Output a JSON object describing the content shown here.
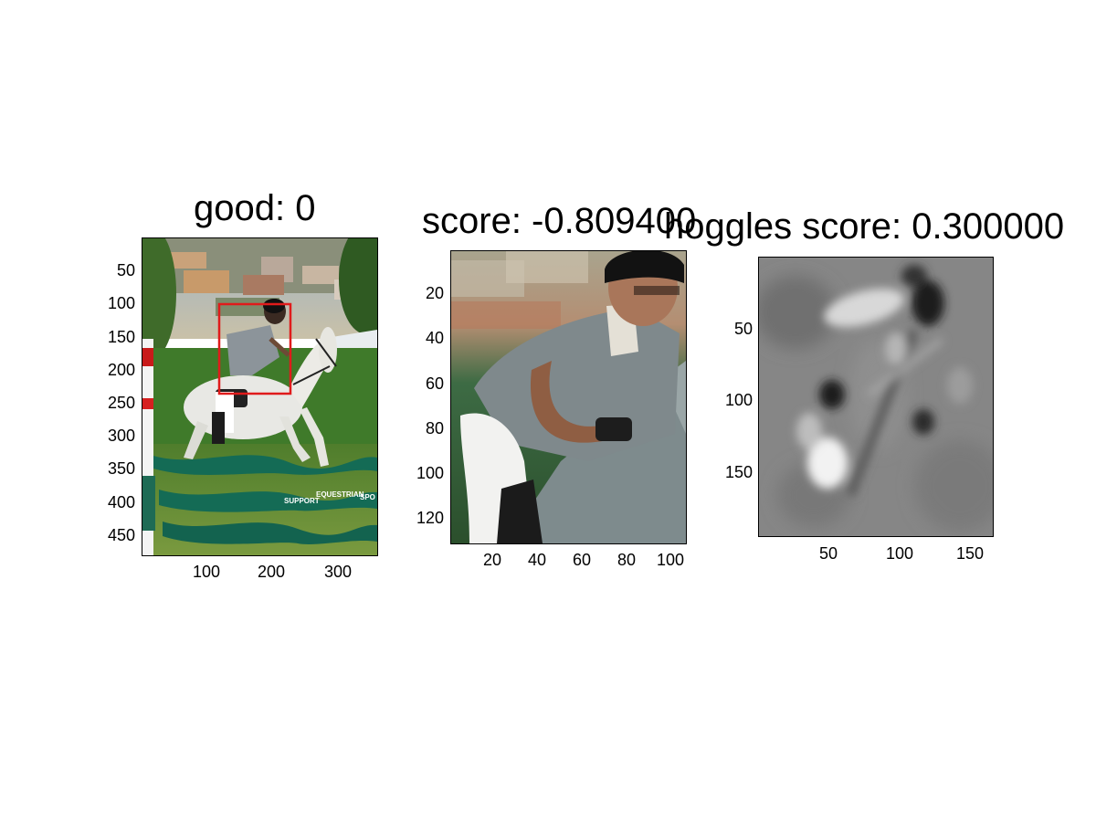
{
  "panels": [
    {
      "id": "original",
      "title": "good: 0",
      "x_ticks": [
        "100",
        "200",
        "300"
      ],
      "y_ticks": [
        "50",
        "100",
        "150",
        "200",
        "250",
        "300",
        "350",
        "400",
        "450"
      ],
      "fence_text": [
        "SUPPORT",
        "EQUESTRIAN",
        "SPO"
      ]
    },
    {
      "id": "crop",
      "title": "score: -0.809400",
      "x_ticks": [
        "20",
        "40",
        "60",
        "80",
        "100"
      ],
      "y_ticks": [
        "20",
        "40",
        "60",
        "80",
        "100",
        "120"
      ]
    },
    {
      "id": "hoggles",
      "title": "hoggles score: 0.300000",
      "x_ticks": [
        "50",
        "100",
        "150"
      ],
      "y_ticks": [
        "50",
        "100",
        "150"
      ]
    }
  ],
  "colors": {
    "background": "#ffffff",
    "detection_box": "#e01b1b",
    "fence_green": "#136b55",
    "grass": "#5c8a34"
  }
}
